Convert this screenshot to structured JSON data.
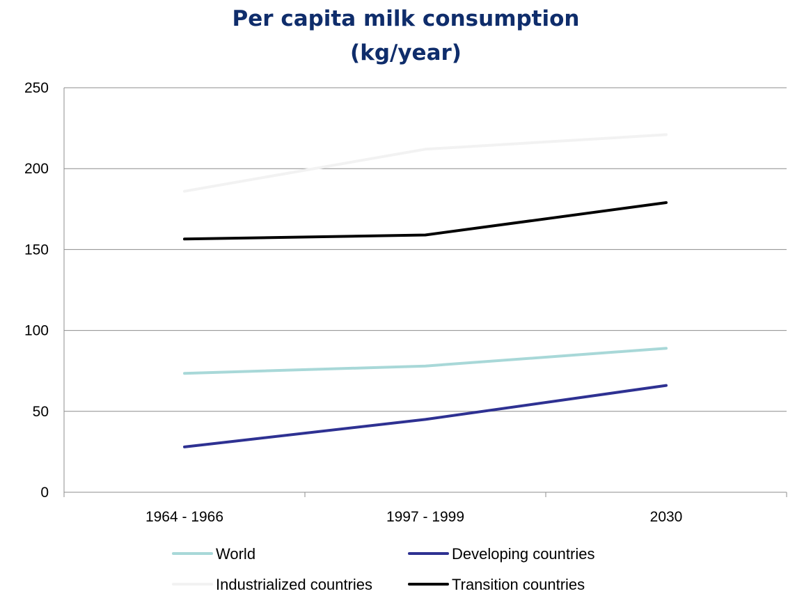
{
  "chart_data": {
    "type": "line",
    "title": "Per capita milk consumption",
    "subtitle": "(kg/year)",
    "xlabel": "",
    "ylabel": "",
    "categories": [
      "1964 - 1966",
      "1997 - 1999",
      "2030"
    ],
    "ylim": [
      0,
      250
    ],
    "yticks": [
      "0",
      "50",
      "100",
      "150",
      "200",
      "250"
    ],
    "grid": true,
    "legend_position": "bottom",
    "series": [
      {
        "name": "World",
        "values": [
          73.5,
          78,
          89
        ],
        "color": "#a8d8d8"
      },
      {
        "name": "Developing countries",
        "values": [
          28,
          45,
          66
        ],
        "color": "#2e3192"
      },
      {
        "name": "Industrialized countries",
        "values": [
          186,
          212,
          221
        ],
        "color": "#f2f2f2"
      },
      {
        "name": "Transition countries",
        "values": [
          156.5,
          159,
          179
        ],
        "color": "#000000"
      }
    ]
  }
}
